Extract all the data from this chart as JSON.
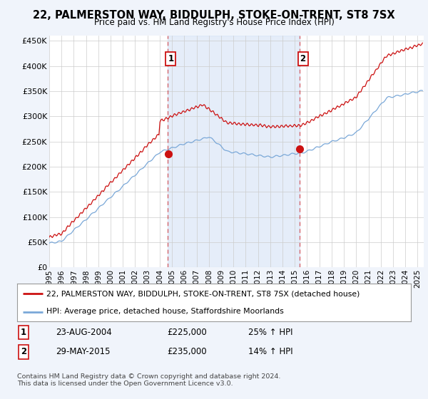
{
  "title": "22, PALMERSTON WAY, BIDDULPH, STOKE-ON-TRENT, ST8 7SX",
  "subtitle": "Price paid vs. HM Land Registry's House Price Index (HPI)",
  "ylim": [
    0,
    460000
  ],
  "yticks": [
    0,
    50000,
    100000,
    150000,
    200000,
    250000,
    300000,
    350000,
    400000,
    450000
  ],
  "ytick_labels": [
    "£0",
    "£50K",
    "£100K",
    "£150K",
    "£200K",
    "£250K",
    "£300K",
    "£350K",
    "£400K",
    "£450K"
  ],
  "sale1_date": 2004.65,
  "sale1_price": 225000,
  "sale1_label": "1",
  "sale1_hpi_pct": "25%",
  "sale1_date_str": "23-AUG-2004",
  "sale2_date": 2015.41,
  "sale2_price": 235000,
  "sale2_label": "2",
  "sale2_hpi_pct": "14%",
  "sale2_date_str": "29-MAY-2015",
  "hpi_line_color": "#7aa8d8",
  "price_line_color": "#cc1111",
  "vline_color": "#cc1111",
  "vline_alpha": 0.6,
  "shade_color": "#ccddf5",
  "shade_alpha": 0.5,
  "legend_label_price": "22, PALMERSTON WAY, BIDDULPH, STOKE-ON-TRENT, ST8 7SX (detached house)",
  "legend_label_hpi": "HPI: Average price, detached house, Staffordshire Moorlands",
  "footer": "Contains HM Land Registry data © Crown copyright and database right 2024.\nThis data is licensed under the Open Government Licence v3.0.",
  "bg_color": "#f0f4fb",
  "plot_bg_color": "#ffffff",
  "xmin": 1995.0,
  "xmax": 2025.5
}
